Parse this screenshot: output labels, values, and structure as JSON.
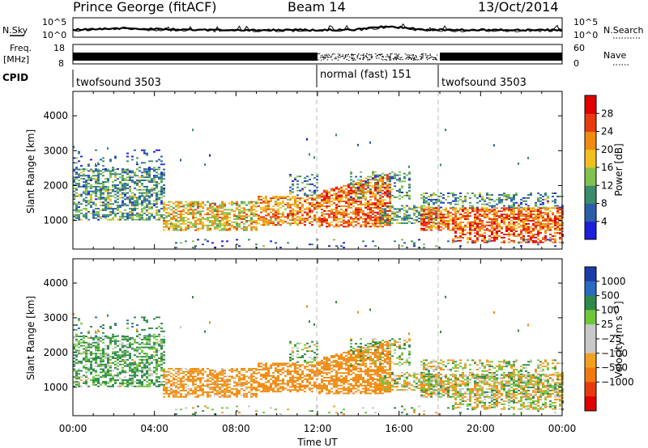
{
  "header": {
    "station": "Prince George (fitACF)",
    "beam": "Beam 14",
    "date": "13/Oct/2014"
  },
  "side_labels": {
    "nsky": "N.Sky",
    "freq": "Freq.",
    "freq_unit": "[MHz]",
    "cpid": "CPID",
    "nsearch": "N.Search",
    "nave": "Nave"
  },
  "strip_ticks": {
    "noise_left": [
      "10^5",
      "10^0"
    ],
    "noise_right": [
      "10^5",
      "10^0"
    ],
    "freq_left": [
      "18",
      "8"
    ],
    "nave_right": [
      "60",
      "0"
    ]
  },
  "cpid_segments": [
    {
      "label": "twofsound 3503",
      "start_h": 0,
      "end_h": 12
    },
    {
      "label": "normal (fast) 151",
      "start_h": 12,
      "end_h": 18
    },
    {
      "label": "twofsound 3503",
      "start_h": 18,
      "end_h": 24
    }
  ],
  "chart_data": [
    {
      "type": "heatmap",
      "ylabel": "Slant Range [km]",
      "x_ticks": [
        "00:00",
        "04:00",
        "08:00",
        "12:00",
        "16:00",
        "20:00",
        "00:00"
      ],
      "y_ticks": [
        1000,
        2000,
        3000,
        4000
      ],
      "ylim": [
        180,
        4700
      ],
      "xlim_hours": [
        0,
        24
      ],
      "colorbar": {
        "label": "Power [dB]",
        "ticks": [
          "4",
          "8",
          "12",
          "16",
          "20",
          "24",
          "28"
        ],
        "colors": [
          "#1e1edc",
          "#2a5fa8",
          "#3a8c6a",
          "#7fc24f",
          "#f0c020",
          "#f08a10",
          "#e63a10",
          "#e00000"
        ]
      },
      "features": [
        {
          "name": "Main scatter band",
          "t": [
            0,
            4.5
          ],
          "r": [
            1000,
            2400
          ]
        },
        {
          "name": "Strong band",
          "t": [
            4.5,
            15.5
          ],
          "r": [
            700,
            1400
          ],
          "peak_db": 28
        },
        {
          "name": "Late-day band",
          "t": [
            17,
            24
          ],
          "r": [
            500,
            1500
          ],
          "peak_db": 28
        }
      ]
    },
    {
      "type": "heatmap",
      "ylabel": "Slant Range [km]",
      "xlabel": "Time UT",
      "x_ticks": [
        "00:00",
        "04:00",
        "08:00",
        "12:00",
        "16:00",
        "20:00",
        "00:00"
      ],
      "y_ticks": [
        1000,
        2000,
        3000,
        4000
      ],
      "ylim": [
        180,
        4700
      ],
      "xlim_hours": [
        0,
        24
      ],
      "colorbar": {
        "label": "Velocity [m s^-1]",
        "ticks": [
          "1000",
          "500",
          "100",
          "25",
          "−25",
          "−100",
          "−500",
          "−1000"
        ],
        "colors": [
          "#1a3ca8",
          "#2a6ac0",
          "#2f8a4a",
          "#6ec83a",
          "#c8c8c8",
          "#c8c8c8",
          "#f2a020",
          "#f07a10",
          "#e63a10",
          "#e00000"
        ]
      }
    }
  ],
  "x_axis": {
    "label": "Time UT",
    "ticks": [
      "00:00",
      "04:00",
      "08:00",
      "12:00",
      "16:00",
      "20:00",
      "00:00"
    ]
  }
}
